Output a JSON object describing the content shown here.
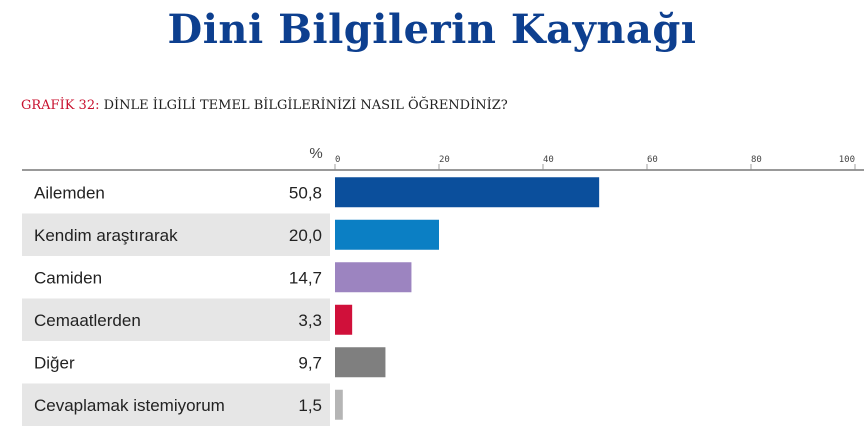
{
  "title": "Dini Bilgilerin Kaynağı",
  "subtitle_prefix": "GRAFİK 32:",
  "subtitle_text": " DİNLE İLGİLİ TEMEL BİLGİLERİNİZİ NASIL ÖĞRENDİNİZ?",
  "chart_data": {
    "type": "bar",
    "orientation": "horizontal",
    "value_header": "%",
    "xlim": [
      0,
      100
    ],
    "xticks": [
      "0",
      "20",
      "40",
      "60",
      "80",
      "100"
    ],
    "categories": [
      "Ailemden",
      "Kendim araştırarak",
      "Camiden",
      "Cemaatlerden",
      "Diğer",
      "Cevaplamak istemiyorum"
    ],
    "value_labels": [
      "50,8",
      "20,0",
      "14,7",
      "3,3",
      "9,7",
      "1,5"
    ],
    "values": [
      50.8,
      20.0,
      14.7,
      3.3,
      9.7,
      1.5
    ],
    "colors": [
      "#0b4f9c",
      "#0b7fc4",
      "#9c84c0",
      "#d0103a",
      "#7f7f7f",
      "#b5b5b5"
    ],
    "row_shading": [
      "#ffffff",
      "#e6e6e6"
    ]
  }
}
